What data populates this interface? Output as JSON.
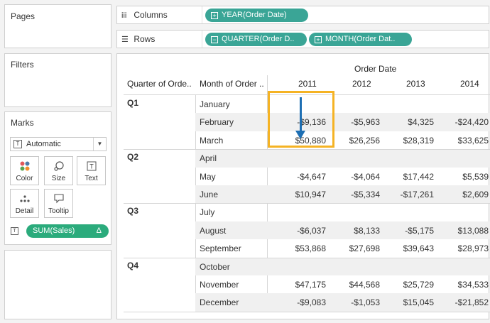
{
  "left": {
    "pages_title": "Pages",
    "filters_title": "Filters",
    "marks_title": "Marks",
    "mark_type": "Automatic",
    "mark_type_icon": "T",
    "cards": {
      "color": "Color",
      "size": "Size",
      "text": "Text",
      "detail": "Detail",
      "tooltip": "Tooltip"
    },
    "text_icon": "T",
    "measure_pill": "SUM(Sales)",
    "measure_pill_icon": "Δ"
  },
  "shelves": {
    "columns_label": "Columns",
    "columns_icon": "iii",
    "rows_label": "Rows",
    "rows_icon": "☰",
    "columns_pills": [
      "YEAR(Order Date)"
    ],
    "rows_pills": [
      "QUARTER(Order D..",
      "MONTH(Order Dat.."
    ],
    "pill_color": "#3aa596"
  },
  "table": {
    "order_date_header": "Order Date",
    "row_header_1": "Quarter of Orde..",
    "row_header_2": "Month of Order ..",
    "years": [
      "2011",
      "2012",
      "2013",
      "2014"
    ],
    "quarters": [
      "Q1",
      "Q2",
      "Q3",
      "Q4"
    ],
    "rows": [
      {
        "month": "January",
        "values": [
          "",
          "",
          "",
          ""
        ]
      },
      {
        "month": "February",
        "values": [
          "-$9,136",
          "-$5,963",
          "$4,325",
          "-$24,420"
        ]
      },
      {
        "month": "March",
        "values": [
          "$50,880",
          "$26,256",
          "$28,319",
          "$33,625"
        ]
      },
      {
        "month": "April",
        "values": [
          "",
          "",
          "",
          ""
        ]
      },
      {
        "month": "May",
        "values": [
          "-$4,647",
          "-$4,064",
          "$17,442",
          "$5,539"
        ]
      },
      {
        "month": "June",
        "values": [
          "$10,947",
          "-$5,334",
          "-$17,261",
          "$2,609"
        ]
      },
      {
        "month": "July",
        "values": [
          "",
          "",
          "",
          ""
        ]
      },
      {
        "month": "August",
        "values": [
          "-$6,037",
          "$8,133",
          "-$5,175",
          "$13,088"
        ]
      },
      {
        "month": "September",
        "values": [
          "$53,868",
          "$27,698",
          "$39,643",
          "$28,973"
        ]
      },
      {
        "month": "October",
        "values": [
          "",
          "",
          "",
          ""
        ]
      },
      {
        "month": "November",
        "values": [
          "$47,175",
          "$44,568",
          "$25,729",
          "$34,533"
        ]
      },
      {
        "month": "December",
        "values": [
          "-$9,083",
          "-$1,053",
          "$15,045",
          "-$21,852"
        ]
      }
    ]
  },
  "colors": {
    "highlight": "#f5b324",
    "arrow": "#1e6fb3",
    "measure_pill": "#2bab7c"
  }
}
